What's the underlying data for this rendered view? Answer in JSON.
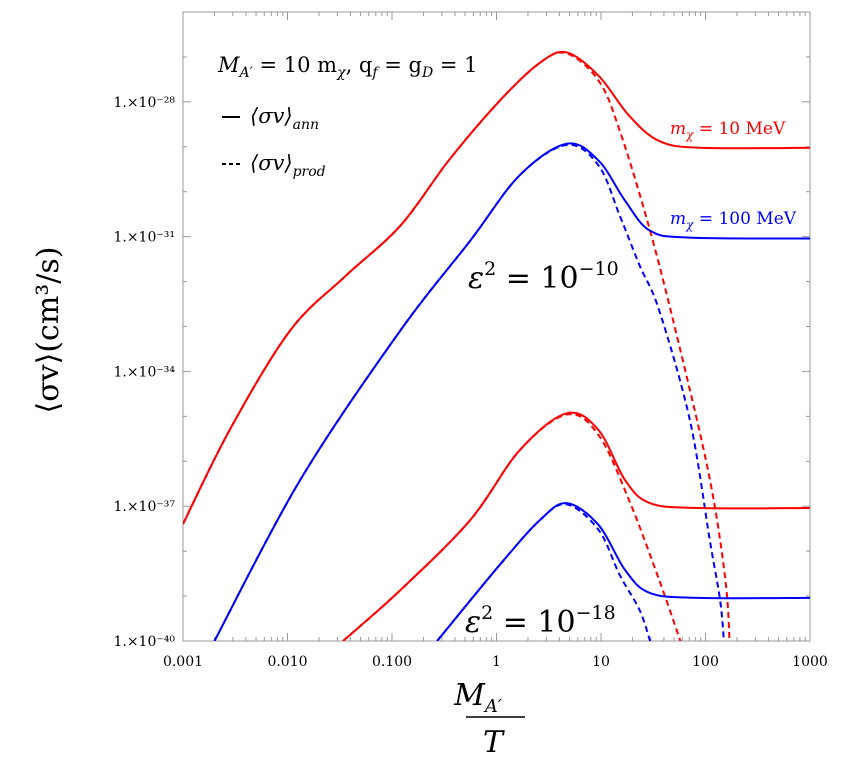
{
  "chart_data": {
    "type": "line",
    "xscale": "log",
    "yscale": "log",
    "xlim": [
      0.001,
      1000
    ],
    "ylim": [
      1e-40,
      1e-26
    ],
    "grid": false,
    "xlabel_num": "M",
    "xlabel_sub": "A′",
    "xlabel_den": "T",
    "ylabel": "⟨σv⟩(cm³/s)",
    "xticks": [
      0.001,
      0.01,
      0.1,
      1,
      10,
      100,
      1000
    ],
    "xtick_labels": [
      "0.001",
      "0.010",
      "0.100",
      "1",
      "10",
      "100",
      "1000"
    ],
    "yticks": [
      1e-40,
      1e-37,
      1e-34,
      1e-31,
      1e-28
    ],
    "ytick_labels": [
      "1.×10⁻⁴⁰",
      "1.×10⁻³⁷",
      "1.×10⁻³⁴",
      "1.×10⁻³¹",
      "1.×10⁻²⁸"
    ],
    "legend": {
      "title": "M_A′ = 10 m_χ,  q_f = g_D = 1",
      "title_parts": {
        "a": "M",
        "a_sub": "A′",
        "b": " = 10 m",
        "b_sub": "χ",
        "c": ",  q",
        "c_sub": "f",
        "d": " = g",
        "d_sub": "D",
        "e": " = 1"
      },
      "entries": [
        {
          "symbol": "—",
          "label": "⟨σv⟩",
          "sub": "ann",
          "style": "solid"
        },
        {
          "symbol": "---",
          "label": "⟨σv⟩",
          "sub": "prod",
          "style": "dashed"
        }
      ],
      "placement": "top-left"
    },
    "annotations": [
      {
        "text": "m",
        "sub": "χ",
        "rest": " = 10 MeV",
        "color": "#ff0000"
      },
      {
        "text": "m",
        "sub": "χ",
        "rest": " = 100 MeV",
        "color": "#0000ff"
      },
      {
        "text": "ε",
        "sup": "2",
        "rest": " = 10",
        "exp": "−10"
      },
      {
        "text": "ε",
        "sup": "2",
        "rest": " = 10",
        "exp": "−18"
      }
    ],
    "colors": {
      "m10": "#ff0000",
      "m100": "#0000ff"
    },
    "series": [
      {
        "group": "eps2=1e-10, m=10 MeV",
        "kind": "ann",
        "color": "#ff0000",
        "style": "solid",
        "x": [
          0.001,
          0.0028,
          0.0105,
          0.035,
          0.12,
          0.35,
          1.07,
          2.6,
          4.7,
          9.5,
          18.6,
          36,
          89,
          1000
        ],
        "y": [
          4e-38,
          5e-36,
          7.9e-34,
          1.26e-32,
          1.74e-31,
          5e-30,
          1.05e-28,
          7.4e-28,
          1.26e-27,
          3.8e-28,
          4.9e-29,
          1.35e-29,
          9.5e-30,
          9.5e-30
        ]
      },
      {
        "group": "eps2=1e-10, m=10 MeV",
        "kind": "prod",
        "color": "#ff0000",
        "style": "dashed",
        "x": [
          0.001,
          0.0028,
          0.0105,
          0.035,
          0.12,
          0.35,
          1.07,
          2.6,
          4.7,
          9.5,
          15.1,
          29.5,
          57.5,
          110,
          155,
          170
        ],
        "y": [
          4e-38,
          5e-36,
          7.9e-34,
          1.26e-32,
          1.74e-31,
          5e-30,
          1.05e-28,
          7.4e-28,
          1.2e-27,
          2.95e-28,
          2.3e-29,
          1.35e-31,
          2.95e-34,
          4e-37,
          2.3e-39,
          1e-40
        ]
      },
      {
        "group": "eps2=1e-10, m=100 MeV",
        "kind": "ann",
        "color": "#0000ff",
        "style": "solid",
        "x": [
          0.002,
          0.0132,
          0.12,
          0.56,
          1.66,
          4.7,
          9.5,
          17,
          29.5,
          71,
          1000
        ],
        "y": [
          1e-40,
          3.8e-37,
          8.1e-34,
          8.1e-32,
          2.3e-30,
          1.17e-29,
          4.9e-30,
          6.3e-31,
          1.35e-31,
          9.5e-32,
          9.1e-32
        ]
      },
      {
        "group": "eps2=1e-10, m=100 MeV",
        "kind": "prod",
        "color": "#0000ff",
        "style": "dashed",
        "x": [
          0.002,
          0.0132,
          0.12,
          0.56,
          1.66,
          4.7,
          9.5,
          15.1,
          23.4,
          36,
          71,
          110,
          138,
          150
        ],
        "y": [
          1e-40,
          3.8e-37,
          8.1e-34,
          8.1e-32,
          2.3e-30,
          1.1e-29,
          3.8e-30,
          2.95e-31,
          2.3e-32,
          2.3e-33,
          8.1e-36,
          1.74e-38,
          8.1e-40,
          1e-40
        ]
      },
      {
        "group": "eps2=1e-18, m=10 MeV",
        "kind": "ann",
        "color": "#ff0000",
        "style": "solid",
        "x": [
          0.034,
          0.12,
          0.56,
          1.66,
          4.7,
          9.5,
          17,
          29.5,
          89,
          1000
        ],
        "y": [
          1e-40,
          1.35e-39,
          4.9e-38,
          1.74e-36,
          1.17e-35,
          4.9e-36,
          3.8e-37,
          1.17e-37,
          9.1e-38,
          9.1e-38
        ]
      },
      {
        "group": "eps2=1e-18, m=10 MeV",
        "kind": "prod",
        "color": "#ff0000",
        "style": "dashed",
        "x": [
          0.034,
          0.12,
          0.56,
          1.66,
          4.7,
          9.5,
          18.6,
          36,
          57.5
        ],
        "y": [
          1e-40,
          1.35e-39,
          4.9e-38,
          1.74e-36,
          1.1e-35,
          3.8e-36,
          1.35e-37,
          2.3e-39,
          1e-40
        ]
      },
      {
        "group": "eps2=1e-18, m=100 MeV",
        "kind": "ann",
        "color": "#0000ff",
        "style": "solid",
        "x": [
          0.27,
          1.07,
          2.6,
          4.7,
          9.5,
          17,
          29.5,
          89,
          1000
        ],
        "y": [
          1e-40,
          4.9e-39,
          4.9e-38,
          1.17e-37,
          3.8e-38,
          3.8e-39,
          1.17e-39,
          9.1e-40,
          9.1e-40
        ]
      },
      {
        "group": "eps2=1e-18, m=100 MeV",
        "kind": "prod",
        "color": "#0000ff",
        "style": "dashed",
        "x": [
          0.27,
          1.07,
          2.6,
          4.7,
          9.5,
          15.1,
          23.4,
          29.5
        ],
        "y": [
          1e-40,
          4.9e-39,
          4.9e-38,
          1.1e-37,
          2.95e-38,
          2.95e-39,
          4.9e-40,
          1e-40
        ]
      }
    ]
  }
}
